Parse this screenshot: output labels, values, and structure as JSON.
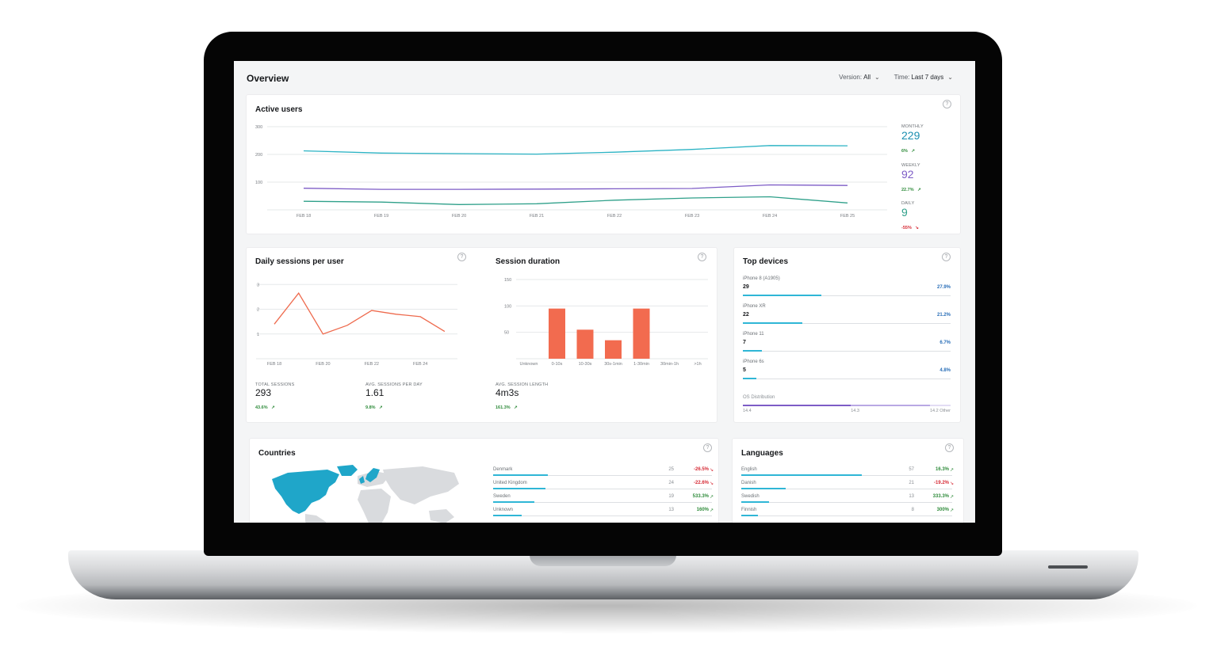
{
  "header": {
    "title": "Overview",
    "version_label": "Version:",
    "version_value": "All",
    "time_label": "Time:",
    "time_value": "Last 7 days"
  },
  "active_users": {
    "title": "Active users",
    "stats": [
      {
        "label": "MONTHLY",
        "value": "229",
        "change": "6%",
        "trend": "up",
        "color": "#1b8fb0"
      },
      {
        "label": "WEEKLY",
        "value": "92",
        "change": "22.7%",
        "trend": "up",
        "color": "#7d5cc6"
      },
      {
        "label": "DAILY",
        "value": "9",
        "change": "-55%",
        "trend": "down",
        "color": "#2fa08a"
      }
    ]
  },
  "daily_sessions": {
    "title": "Daily sessions per user",
    "total_label": "TOTAL SESSIONS",
    "total_value": "293",
    "total_change": "43.6%",
    "avg_label": "AVG. SESSIONS PER DAY",
    "avg_value": "1.61",
    "avg_change": "9.8%"
  },
  "session_duration": {
    "title": "Session duration",
    "avg_label": "AVG. SESSION LENGTH",
    "avg_value": "4m3s",
    "avg_change": "161.3%"
  },
  "top_devices": {
    "title": "Top devices",
    "items": [
      {
        "name": "iPhone 8 (A1905)",
        "count": "29",
        "pct": "27.9%",
        "share": 0.279
      },
      {
        "name": "iPhone XR",
        "count": "22",
        "pct": "21.2%",
        "share": 0.212
      },
      {
        "name": "iPhone 11",
        "count": "7",
        "pct": "6.7%",
        "share": 0.067
      },
      {
        "name": "iPhone 6s",
        "count": "5",
        "pct": "4.8%",
        "share": 0.048
      }
    ],
    "os_label": "OS Distribution",
    "os_segments": [
      {
        "label": "14.4",
        "share": 0.52,
        "color": "#7d5cc6"
      },
      {
        "label": "14.3",
        "share": 0.38,
        "color": "#b9a8e4"
      },
      {
        "label": "14.2 Other",
        "share": 0.1,
        "color": "#e3dcf4"
      }
    ]
  },
  "countries": {
    "title": "Countries",
    "rows": [
      {
        "name": "Denmark",
        "count": "25",
        "change": "-26.5%",
        "trend": "down",
        "share": 0.25
      },
      {
        "name": "United Kingdom",
        "count": "24",
        "change": "-22.6%",
        "trend": "down",
        "share": 0.24
      },
      {
        "name": "Sweden",
        "count": "19",
        "change": "533.3%",
        "trend": "up",
        "share": 0.19
      },
      {
        "name": "Unknown",
        "count": "13",
        "change": "160%",
        "trend": "up",
        "share": 0.13
      }
    ]
  },
  "languages": {
    "title": "Languages",
    "rows": [
      {
        "name": "English",
        "count": "57",
        "change": "16.3%",
        "trend": "up",
        "share": 0.57
      },
      {
        "name": "Danish",
        "count": "21",
        "change": "-19.2%",
        "trend": "down",
        "share": 0.21
      },
      {
        "name": "Swedish",
        "count": "13",
        "change": "333.3%",
        "trend": "up",
        "share": 0.13
      },
      {
        "name": "Finnish",
        "count": "8",
        "change": "300%",
        "trend": "up",
        "share": 0.08
      }
    ]
  },
  "chart_data": [
    {
      "type": "line",
      "title": "Active users",
      "x": [
        "FEB 18",
        "FEB 19",
        "FEB 20",
        "FEB 21",
        "FEB 22",
        "FEB 23",
        "FEB 24",
        "FEB 25"
      ],
      "ylim": [
        0,
        300
      ],
      "yticks": [
        "300",
        "200",
        "100"
      ],
      "series": [
        {
          "name": "MONTHLY",
          "values": [
            213,
            205,
            203,
            201,
            208,
            218,
            232,
            231
          ],
          "color": "#2bb3c4"
        },
        {
          "name": "WEEKLY",
          "values": [
            78,
            74,
            74,
            75,
            76,
            77,
            90,
            88
          ],
          "color": "#7d5cc6"
        },
        {
          "name": "DAILY",
          "values": [
            31,
            28,
            19,
            22,
            35,
            43,
            47,
            25
          ],
          "color": "#2fa08a"
        }
      ]
    },
    {
      "type": "line",
      "title": "Daily sessions per user",
      "x": [
        "FEB 18",
        "FEB 19",
        "FEB 20",
        "FEB 21",
        "FEB 22",
        "FEB 23",
        "FEB 24",
        "FEB 25"
      ],
      "xticks": [
        "FEB 18",
        "FEB 20",
        "FEB 22",
        "FEB 24"
      ],
      "ylim": [
        0,
        3
      ],
      "yticks": [
        "3",
        "2",
        "1"
      ],
      "series": [
        {
          "values": [
            1.4,
            2.65,
            1.0,
            1.35,
            1.95,
            1.8,
            1.7,
            1.1
          ],
          "color": "#ee6a4d"
        }
      ]
    },
    {
      "type": "bar",
      "title": "Session duration",
      "categories": [
        "Unknown",
        "0-10s",
        "10-30s",
        "30s-1min",
        "1-30min",
        "30min-1h",
        ">1h"
      ],
      "values": [
        0,
        95,
        55,
        35,
        95,
        0,
        0
      ],
      "ylim": [
        0,
        150
      ],
      "yticks": [
        "150",
        "100",
        "50"
      ],
      "color": "#f26b4f"
    }
  ]
}
